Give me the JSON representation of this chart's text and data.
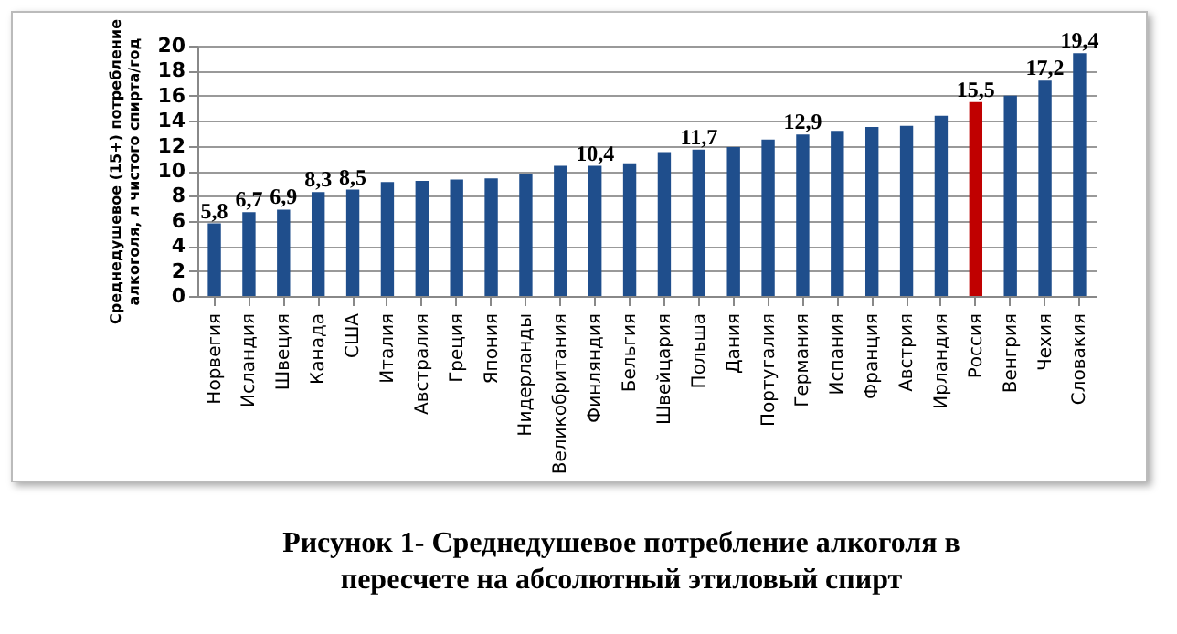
{
  "chart_data": {
    "type": "bar",
    "title": "Рисунок 1- Среднедушевое потребление алкоголя в пересчете на абсолютный этиловый спирт",
    "ylabel": "Среднедушевое (15+) потребление алкоголя, л чистого спирта/год",
    "categories": [
      "Норвегия",
      "Исландия",
      "Швеция",
      "Канада",
      "США",
      "Италия",
      "Австралия",
      "Греция",
      "Япония",
      "Нидерланды",
      "Великобритания",
      "Финляндия",
      "Бельгия",
      "Швейцария",
      "Польша",
      "Дания",
      "Португалия",
      "Германия",
      "Испания",
      "Франция",
      "Австрия",
      "Ирландия",
      "Россия",
      "Венгрия",
      "Чехия",
      "Словакия"
    ],
    "values": [
      5.8,
      6.7,
      6.9,
      8.3,
      8.5,
      9.1,
      9.2,
      9.3,
      9.4,
      9.7,
      10.4,
      10.4,
      10.6,
      11.5,
      11.7,
      11.9,
      12.5,
      12.9,
      13.2,
      13.5,
      13.6,
      14.4,
      15.5,
      16.0,
      17.2,
      19.4
    ],
    "value_labels": [
      "5,8",
      "6,7",
      "6,9",
      "8,3",
      "8,5",
      null,
      null,
      null,
      null,
      null,
      null,
      "10,4",
      null,
      null,
      "11,7",
      null,
      null,
      "12,9",
      null,
      null,
      null,
      null,
      "15,5",
      null,
      "17,2",
      "19,4"
    ],
    "colors": [
      "#1f4e8c",
      "#1f4e8c",
      "#1f4e8c",
      "#1f4e8c",
      "#1f4e8c",
      "#1f4e8c",
      "#1f4e8c",
      "#1f4e8c",
      "#1f4e8c",
      "#1f4e8c",
      "#1f4e8c",
      "#1f4e8c",
      "#1f4e8c",
      "#1f4e8c",
      "#1f4e8c",
      "#1f4e8c",
      "#1f4e8c",
      "#1f4e8c",
      "#1f4e8c",
      "#1f4e8c",
      "#1f4e8c",
      "#1f4e8c",
      "#c00000",
      "#1f4e8c",
      "#1f4e8c",
      "#1f4e8c"
    ],
    "ylim": [
      0,
      20
    ],
    "yticks": [
      0,
      2,
      4,
      6,
      8,
      10,
      12,
      14,
      16,
      18,
      20
    ],
    "grid": "y"
  }
}
